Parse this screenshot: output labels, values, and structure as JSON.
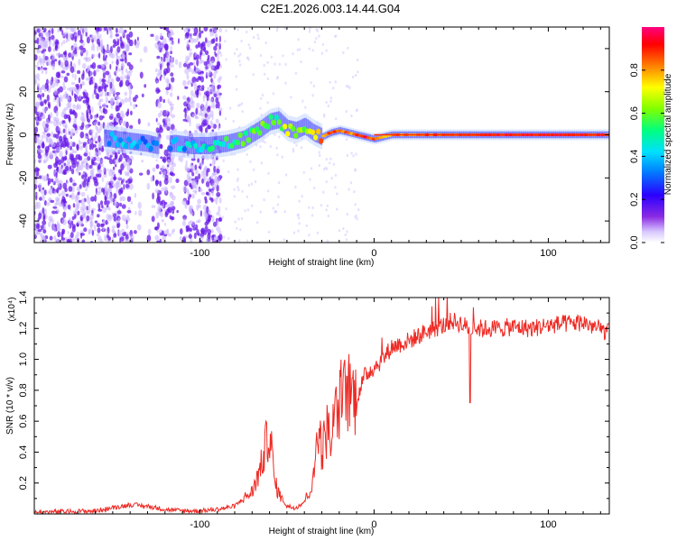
{
  "page_title": "C2E1.2026.003.14.44.G04",
  "colors": {
    "snr_line": "#ee2a24",
    "spectrum_low": "#7000ff",
    "spectrum_high": "#ff0000"
  },
  "chart_data": [
    {
      "type": "heatmap",
      "name": "spectrogram",
      "xlabel": "Height of straight line (km)",
      "ylabel": "Frequency (Hz)",
      "xlim": [
        -195,
        135
      ],
      "ylim": [
        -50,
        50
      ],
      "x_ticks": [
        -100,
        0,
        100
      ],
      "x_tick_labels": [
        "-100",
        "0",
        "100"
      ],
      "y_ticks": [
        -40,
        -20,
        0,
        20,
        40
      ],
      "y_tick_labels": [
        "-40",
        "-20",
        "0",
        "20",
        "40"
      ],
      "colorbar": {
        "label": "Normalized spectral amplitude",
        "range": [
          0.0,
          1.0
        ],
        "ticks": [
          0.0,
          0.2,
          0.4,
          0.6,
          0.8
        ],
        "tick_labels": [
          "0.0",
          "0.2",
          "0.4",
          "0.6",
          "0.8"
        ]
      },
      "ridge": {
        "x": [
          -150,
          -140,
          -130,
          -125,
          -115,
          -105,
          -95,
          -85,
          -75,
          -65,
          -60,
          -55,
          -50,
          -45,
          -40,
          -35,
          -30,
          -25,
          -20,
          -15,
          -10,
          -5,
          0,
          10,
          30,
          60,
          100,
          135
        ],
        "frequency": [
          -2,
          -3,
          -4,
          -5,
          -4,
          -5,
          -5,
          -4,
          -2,
          3,
          6,
          7,
          3,
          2,
          4,
          1,
          -1,
          1,
          2,
          1,
          0,
          -1,
          -2,
          0,
          0,
          0,
          0,
          0
        ],
        "amplitude": [
          0.35,
          0.4,
          0.35,
          0.3,
          0.35,
          0.4,
          0.45,
          0.5,
          0.55,
          0.6,
          0.55,
          0.5,
          0.7,
          0.65,
          0.6,
          0.75,
          0.8,
          0.85,
          0.9,
          0.8,
          0.85,
          0.9,
          0.85,
          0.8,
          0.85,
          0.9,
          0.95,
          0.9
        ]
      },
      "noise_region": [
        -195,
        -88
      ]
    },
    {
      "type": "line",
      "name": "snr",
      "xlabel": "Height of straight line (km)",
      "ylabel": "SNR (10 * v/v)",
      "y_scale_label": "(x10⁴)",
      "xlim": [
        -195,
        135
      ],
      "ylim": [
        0,
        1.4
      ],
      "x_ticks": [
        -100,
        0,
        100
      ],
      "x_tick_labels": [
        "-100",
        "0",
        "100"
      ],
      "y_ticks": [
        0.2,
        0.4,
        0.6,
        0.8,
        1.0,
        1.2,
        1.4
      ],
      "y_tick_labels": [
        "0.2",
        "0.4",
        "0.6",
        "0.8",
        "1.0",
        "1.2",
        "1.4"
      ],
      "series": [
        {
          "name": "SNR",
          "x": [
            -195,
            -160,
            -150,
            -140,
            -130,
            -120,
            -110,
            -100,
            -90,
            -80,
            -75,
            -70,
            -65,
            -60,
            -57,
            -54,
            -50,
            -45,
            -40,
            -35,
            -32,
            -30,
            -27,
            -25,
            -20,
            -15,
            -10,
            -5,
            0,
            5,
            10,
            15,
            20,
            30,
            40,
            45,
            50,
            55,
            60,
            70,
            80,
            90,
            100,
            110,
            120,
            135
          ],
          "values": [
            0.01,
            0.02,
            0.04,
            0.06,
            0.05,
            0.03,
            0.02,
            0.02,
            0.03,
            0.05,
            0.1,
            0.14,
            0.3,
            0.55,
            0.2,
            0.12,
            0.05,
            0.04,
            0.08,
            0.2,
            0.6,
            0.4,
            0.55,
            0.5,
            0.7,
            0.8,
            0.75,
            0.9,
            0.95,
            1.0,
            1.08,
            1.1,
            1.12,
            1.18,
            1.22,
            1.25,
            1.23,
            1.2,
            1.2,
            1.2,
            1.21,
            1.2,
            1.22,
            1.23,
            1.24,
            1.17
          ]
        }
      ]
    }
  ]
}
